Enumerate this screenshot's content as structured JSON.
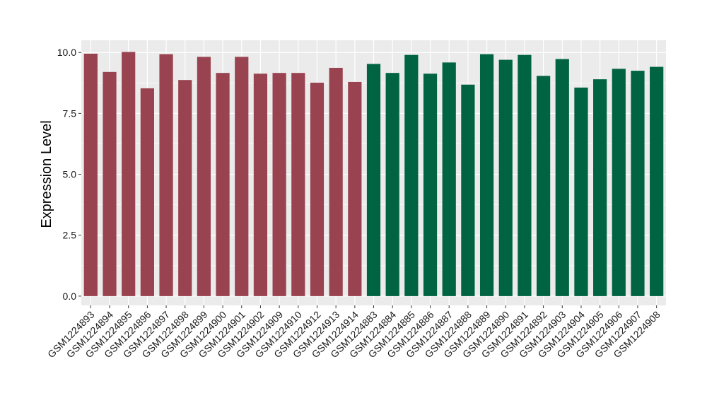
{
  "chart_data": {
    "type": "bar",
    "title": "",
    "xlabel": "",
    "ylabel": "Expression Level",
    "ylim": [
      -0.38,
      10.5
    ],
    "yticks": [
      0.0,
      2.5,
      5.0,
      7.5,
      10.0
    ],
    "ytick_labels": [
      "0.0",
      "2.5",
      "5.0",
      "7.5",
      "10.0"
    ],
    "grid": true,
    "legend": "none",
    "colors": {
      "group1": "#9a4350",
      "group2": "#006443",
      "panel": "#ebebeb",
      "gridline": "#ffffff"
    },
    "categories": [
      "GSM1224893",
      "GSM1224894",
      "GSM1224895",
      "GSM1224896",
      "GSM1224897",
      "GSM1224898",
      "GSM1224899",
      "GSM1224900",
      "GSM1224901",
      "GSM1224902",
      "GSM1224909",
      "GSM1224910",
      "GSM1224912",
      "GSM1224913",
      "GSM1224914",
      "GSM1224883",
      "GSM1224884",
      "GSM1224885",
      "GSM1224886",
      "GSM1224887",
      "GSM1224888",
      "GSM1224889",
      "GSM1224890",
      "GSM1224891",
      "GSM1224892",
      "GSM1224903",
      "GSM1224904",
      "GSM1224905",
      "GSM1224906",
      "GSM1224907",
      "GSM1224908"
    ],
    "values": [
      9.95,
      9.2,
      10.02,
      8.53,
      9.93,
      8.87,
      9.82,
      9.16,
      9.82,
      9.13,
      9.16,
      9.16,
      8.76,
      9.37,
      8.79,
      9.53,
      9.16,
      9.9,
      9.13,
      9.59,
      8.68,
      9.93,
      9.7,
      9.9,
      9.04,
      9.73,
      8.56,
      8.9,
      9.33,
      9.25,
      9.41
    ],
    "groups": [
      1,
      1,
      1,
      1,
      1,
      1,
      1,
      1,
      1,
      1,
      1,
      1,
      1,
      1,
      1,
      2,
      2,
      2,
      2,
      2,
      2,
      2,
      2,
      2,
      2,
      2,
      2,
      2,
      2,
      2,
      2
    ]
  }
}
